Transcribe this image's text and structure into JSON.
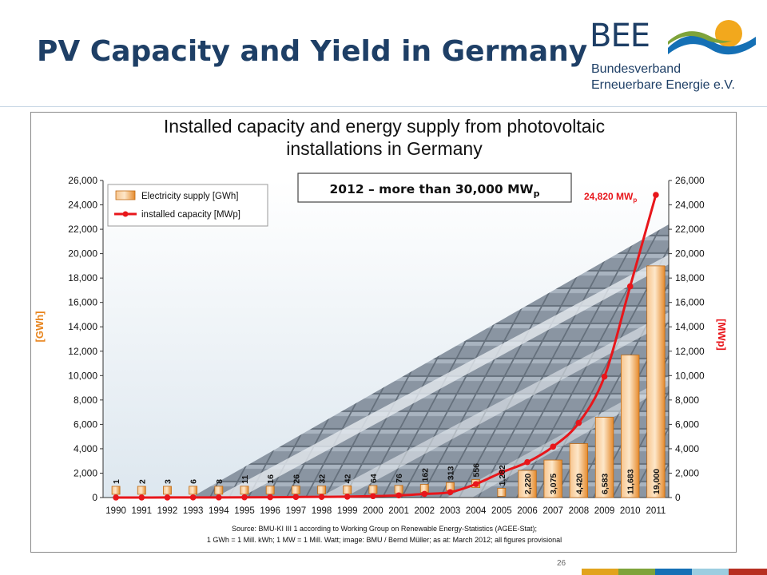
{
  "slide": {
    "title": "PV Capacity and Yield in Germany",
    "page_number": "26"
  },
  "logo": {
    "brand": "BEE",
    "line1": "Bundesverband",
    "line2": "Erneuerbare Energie e.V."
  },
  "colors": {
    "title": "#1e3f66",
    "bar_fill": "#f5a85a",
    "line": "#e8161b",
    "footer": [
      "#e2a31c",
      "#7ea33a",
      "#1570b5",
      "#9ccde0",
      "#b72f21"
    ]
  },
  "chart_data": {
    "type": "bar",
    "title": "Installed capacity and energy supply from photovoltaic installations in Germany",
    "categories": [
      "1990",
      "1991",
      "1992",
      "1993",
      "1994",
      "1995",
      "1996",
      "1997",
      "1998",
      "1999",
      "2000",
      "2001",
      "2002",
      "2003",
      "2004",
      "2005",
      "2006",
      "2007",
      "2008",
      "2009",
      "2010",
      "2011"
    ],
    "series": [
      {
        "name": "Electricity supply [GWh]",
        "type": "bar",
        "axis": "left",
        "values": [
          1,
          2,
          3,
          6,
          8,
          11,
          16,
          26,
          32,
          42,
          64,
          76,
          162,
          313,
          556,
          1282,
          2220,
          3075,
          4420,
          6583,
          11683,
          19000
        ],
        "labels": [
          "1",
          "2",
          "3",
          "6",
          "8",
          "11",
          "16",
          "26",
          "32",
          "42",
          "64",
          "76",
          "162",
          "313",
          "556",
          "1,282",
          "2,220",
          "3,075",
          "4,420",
          "6,583",
          "11,683",
          "19,000"
        ]
      },
      {
        "name": "installed capacity [MWp]",
        "type": "line",
        "axis": "right",
        "values": [
          2,
          3,
          6,
          9,
          12,
          18,
          28,
          42,
          54,
          70,
          114,
          176,
          296,
          435,
          1105,
          2056,
          2899,
          4170,
          6120,
          9914,
          17320,
          24820
        ]
      }
    ],
    "ylabel_left": "[GWh]",
    "ylabel_right": "[MWp]",
    "ylim": [
      0,
      26000
    ],
    "ticks": [
      "0",
      "2,000",
      "4,000",
      "6,000",
      "8,000",
      "10,000",
      "12,000",
      "14,000",
      "16,000",
      "18,000",
      "20,000",
      "22,000",
      "24,000",
      "26,000"
    ],
    "annotation_box": "2012 – more than 30,000 MW",
    "annotation_box_sub": "p",
    "annotation_point": "24,820 MW",
    "annotation_point_sub": "p",
    "source_line1": "Source: BMU-KI III 1 according to Working Group on Renewable Energy-Statistics (AGEE-Stat);",
    "source_line2": "1 GWh = 1 Mill. kWh; 1 MW = 1 Mill. Watt; image: BMU / Bernd Müller; as at: March 2012; all figures provisional",
    "legend_position": "top-left",
    "grid": false
  }
}
